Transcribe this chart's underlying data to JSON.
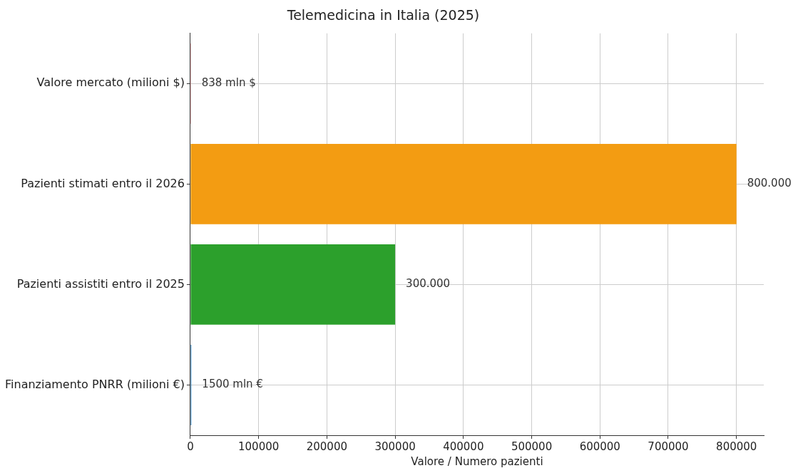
{
  "chart_data": {
    "type": "bar",
    "orientation": "horizontal",
    "title": "Telemedicina in Italia (2025)",
    "xlabel": "Valore / Numero pazienti",
    "categories": [
      "Valore mercato (milioni $)",
      "Pazienti stimati entro il 2026",
      "Pazienti assistiti entro il 2025",
      "Finanziamento PNRR (milioni €)"
    ],
    "values": [
      838,
      800000,
      300000,
      1500
    ],
    "colors": [
      "#d62728",
      "#f39c12",
      "#2ca02c",
      "#1f77b4"
    ],
    "value_labels": [
      "838 mln $",
      "800.000",
      "300.000",
      "1500 mln €"
    ],
    "xlim": [
      0,
      840000
    ],
    "xticks": [
      0,
      100000,
      200000,
      300000,
      400000,
      500000,
      600000,
      700000,
      800000
    ],
    "grid": true,
    "legend": false
  }
}
